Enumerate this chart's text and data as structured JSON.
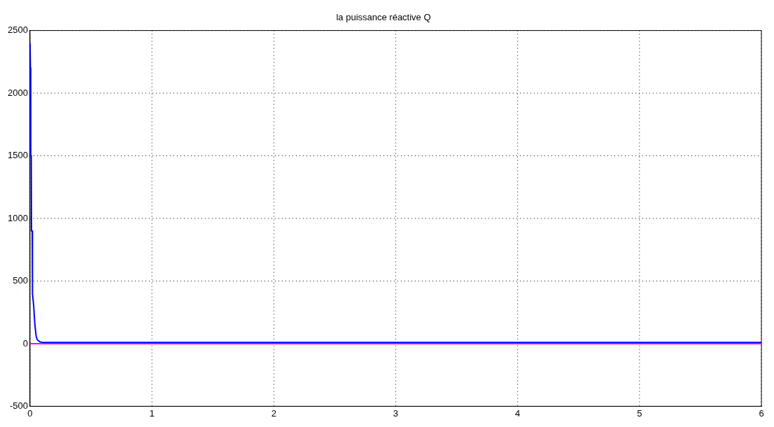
{
  "chart_data": {
    "type": "line",
    "title": "la puissance réactive Q",
    "xlim": [
      0,
      6
    ],
    "xticks": [
      0,
      1,
      2,
      3,
      4,
      5,
      6
    ],
    "ylim": [
      -500,
      2500
    ],
    "yticks": [
      -500,
      0,
      500,
      1000,
      1500,
      2000,
      2500
    ],
    "grid": true,
    "legend": false,
    "marker": "none",
    "line_style": "solid",
    "series": [
      {
        "color": "#0000ff",
        "x": [
          0,
          0.003,
          0.006,
          0.01,
          0.012,
          0.018,
          0.02,
          0.025,
          0.03,
          0.04,
          0.05,
          0.06,
          0.08,
          0.1,
          1,
          2,
          3,
          4,
          5,
          6
        ],
        "values": [
          2400,
          2200,
          1500,
          1500,
          900,
          900,
          400,
          350,
          300,
          150,
          60,
          30,
          15,
          10,
          10,
          10,
          10,
          10,
          10,
          10
        ]
      },
      {
        "color": "#ff00ff",
        "x": [
          0,
          6
        ],
        "values": [
          0,
          0
        ]
      }
    ]
  }
}
